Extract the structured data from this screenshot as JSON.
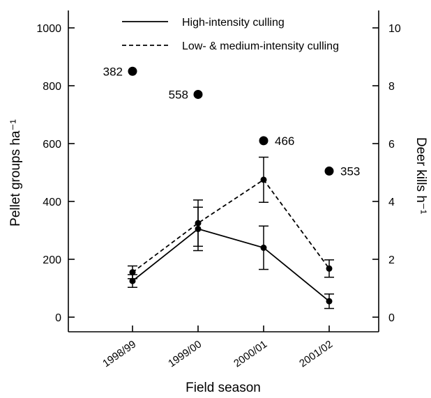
{
  "chart_data": {
    "type": "line",
    "title": "",
    "xlabel": "Field season",
    "ylabel": "Pellet groups ha⁻¹",
    "y2label": "Deer kills h⁻¹",
    "categories": [
      "1998/99",
      "1999/00",
      "2000/01",
      "2001/02"
    ],
    "ylim": [
      0,
      1000
    ],
    "y_ticks": [
      "0",
      "200",
      "400",
      "600",
      "800",
      "1000"
    ],
    "y2lim": [
      0,
      10
    ],
    "y2_ticks": [
      "0",
      "2",
      "4",
      "6",
      "8",
      "10"
    ],
    "grid": false,
    "legend_position": "top",
    "series": [
      {
        "name": "High-intensity culling",
        "line_style": "solid",
        "values": [
          125,
          305,
          240,
          55
        ],
        "error": [
          22,
          75,
          75,
          25
        ]
      },
      {
        "name": "Low- & medium-intensity culling",
        "line_style": "dashed",
        "values": [
          155,
          325,
          475,
          168
        ],
        "error": [
          22,
          80,
          78,
          30
        ]
      }
    ],
    "deer_kills": {
      "axis": "right",
      "values": [
        8.5,
        7.7,
        6.1,
        5.05
      ],
      "labels": [
        "382",
        "558",
        "466",
        "353"
      ],
      "label_side": [
        "left",
        "left",
        "right",
        "right"
      ]
    }
  }
}
